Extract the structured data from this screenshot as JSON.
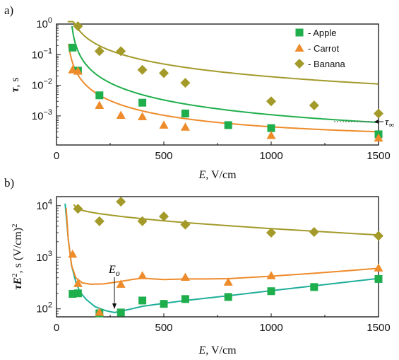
{
  "chart_data": [
    {
      "type": "scatter",
      "panel_label": "a)",
      "xlabel_main": "E,",
      "xlabel_unit": " V/cm",
      "ylabel_main": "τ",
      "ylabel_unit": ", s",
      "xlim": [
        0,
        1500
      ],
      "ylim": [
        0.0001,
        1
      ],
      "yscale": "log",
      "xticks": [
        "0",
        "500",
        "1000",
        "1500"
      ],
      "yticks": [
        {
          "base": "10",
          "exp": "0",
          "value": 1
        },
        {
          "base": "10",
          "exp": "−1",
          "value": 0.1
        },
        {
          "base": "10",
          "exp": "−2",
          "value": 0.01
        },
        {
          "base": "10",
          "exp": "−3",
          "value": 0.001
        }
      ],
      "legend_position": "top-right",
      "annotation": {
        "label": "τ",
        "subscript": "∞",
        "y": 0.0008
      },
      "series": [
        {
          "name": "- Apple",
          "marker": "square",
          "color": "#1fae4c",
          "x": [
            75,
            100,
            200,
            400,
            600,
            800,
            1000,
            1500
          ],
          "y": [
            0.17,
            0.03,
            0.0047,
            0.0027,
            0.0012,
            0.0005,
            0.0004,
            0.00025
          ],
          "fit": {
            "x0": 60,
            "c": 0.0001,
            "A": 1.6,
            "p": 1.55
          }
        },
        {
          "name": "- Carrot",
          "marker": "triangle",
          "color": "#ee8b2b",
          "x": [
            75,
            100,
            200,
            300,
            400,
            500,
            600,
            1000,
            1500
          ],
          "y": [
            0.032,
            0.029,
            0.0022,
            0.00105,
            0.00095,
            0.0005,
            0.00043,
            0.00023,
            0.00019
          ],
          "fit": {
            "x0": 44,
            "c": 0.00015,
            "A": 0.45,
            "p": 1.52
          }
        },
        {
          "name": "- Banana",
          "marker": "diamond",
          "color": "#a39a2a",
          "x": [
            100,
            200,
            300,
            400,
            500,
            600,
            1000,
            1200,
            1500
          ],
          "y": [
            0.85,
            0.13,
            0.13,
            0.032,
            0.025,
            0.012,
            0.003,
            0.0022,
            0.0012
          ],
          "fit": {
            "x0": 40,
            "c": 0.0,
            "A": 18.0,
            "p": 1.3
          }
        }
      ]
    },
    {
      "type": "scatter",
      "panel_label": "b)",
      "xlabel_main": "E,",
      "xlabel_unit": " V/cm",
      "ylabel_main": "τE",
      "ylabel_sup": "2",
      "ylabel_unit": ", s (V/cm)",
      "ylabel_unit_sup": "2",
      "xlim": [
        0,
        1500
      ],
      "ylim": [
        70,
        15000
      ],
      "yscale": "log",
      "xticks": [
        "0",
        "500",
        "1000",
        "1500"
      ],
      "yticks": [
        {
          "base": "10",
          "exp": "4",
          "value": 10000
        },
        {
          "base": "10",
          "exp": "3",
          "value": 1000
        },
        {
          "base": "10",
          "exp": "2",
          "value": 100
        }
      ],
      "annotation": {
        "label": "E",
        "subscript": "o",
        "x": 270,
        "y": 85
      },
      "series": [
        {
          "name": "Apple",
          "marker": "square",
          "color": "#1fae4c",
          "x": [
            75,
            100,
            200,
            300,
            400,
            500,
            600,
            800,
            1000,
            1200,
            1500
          ],
          "y": [
            195,
            200,
            82,
            85,
            145,
            125,
            155,
            170,
            220,
            265,
            380
          ]
        },
        {
          "name": "Carrot",
          "marker": "triangle",
          "color": "#ee8b2b",
          "x": [
            75,
            100,
            200,
            300,
            400,
            600,
            800,
            1000,
            1500
          ],
          "y": [
            1150,
            310,
            86,
            300,
            440,
            410,
            330,
            440,
            620
          ]
        },
        {
          "name": "Banana",
          "marker": "diamond",
          "color": "#a39a2a",
          "x": [
            100,
            200,
            300,
            400,
            500,
            600,
            1000,
            1200,
            1500
          ],
          "y": [
            8700,
            5000,
            12000,
            5000,
            6200,
            4300,
            3000,
            3100,
            2600
          ]
        }
      ],
      "fit_curves": [
        {
          "color": "#1fae9a",
          "x": [
            40,
            55,
            70,
            90,
            110,
            140,
            180,
            230,
            270,
            300,
            350,
            400,
            500,
            600,
            800,
            1000,
            1200,
            1500
          ],
          "y": [
            11000,
            2200,
            700,
            330,
            210,
            150,
            110,
            92,
            85,
            90,
            100,
            112,
            128,
            145,
            180,
            225,
            280,
            390
          ]
        },
        {
          "color": "#ee8b2b",
          "x": [
            45,
            55,
            70,
            90,
            120,
            160,
            220,
            300,
            350,
            400,
            450,
            500,
            600,
            700,
            800,
            1000,
            1200,
            1500
          ],
          "y": [
            9000,
            2200,
            700,
            400,
            320,
            300,
            305,
            340,
            370,
            395,
            380,
            370,
            380,
            380,
            385,
            430,
            490,
            610
          ]
        },
        {
          "color": "#a39a2a",
          "x": [
            80,
            100,
            150,
            200,
            300,
            400,
            500,
            600,
            800,
            1000,
            1200,
            1500
          ],
          "y": [
            10500,
            8500,
            7600,
            7000,
            6200,
            5600,
            5100,
            4700,
            4100,
            3600,
            3200,
            2700
          ]
        }
      ]
    }
  ]
}
